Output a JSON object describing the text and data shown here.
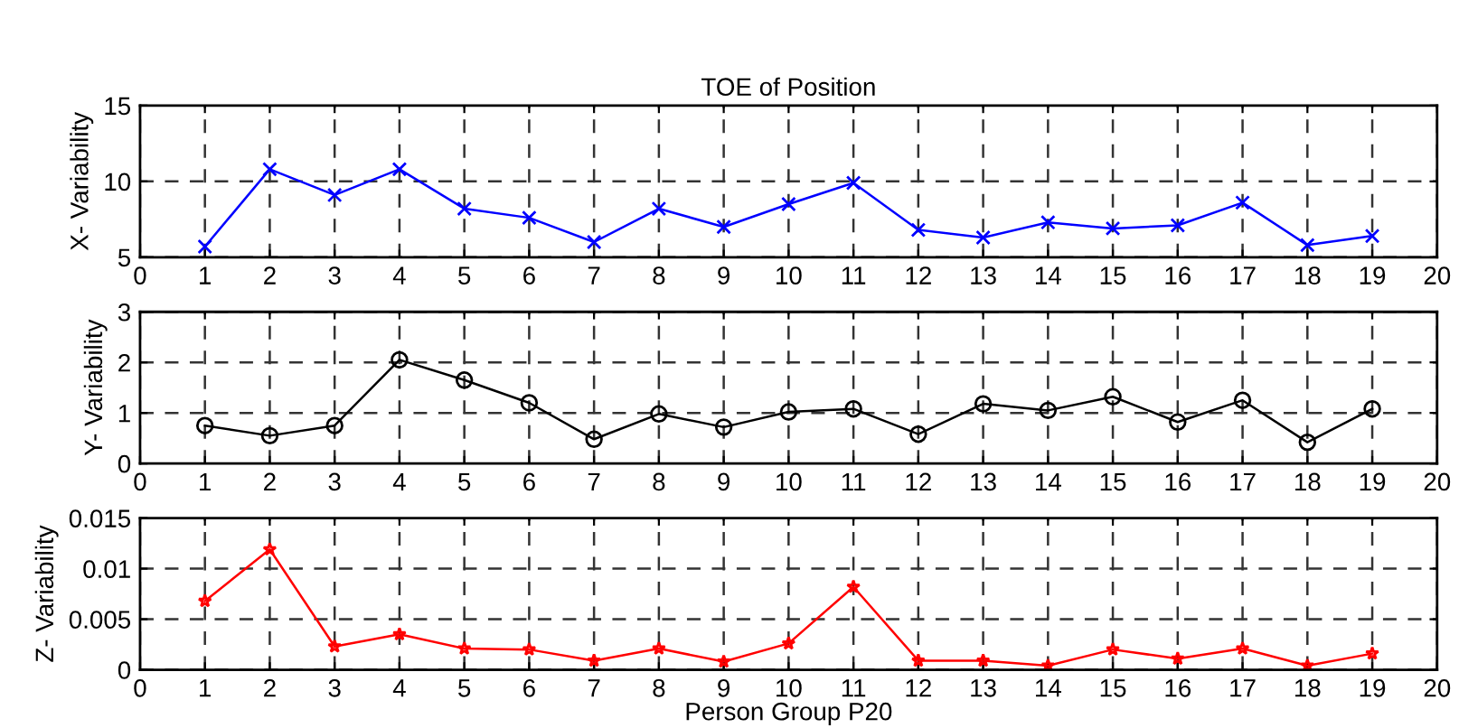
{
  "chart_data": [
    {
      "type": "line",
      "title": "TOE of Position",
      "ylabel": "X- Variability",
      "x": [
        1,
        2,
        3,
        4,
        5,
        6,
        7,
        8,
        9,
        10,
        11,
        12,
        13,
        14,
        15,
        16,
        17,
        18,
        19
      ],
      "series": [
        {
          "color": "#0000ff",
          "values": [
            5.7,
            10.8,
            9.1,
            10.8,
            8.2,
            7.6,
            6.0,
            8.2,
            7.0,
            8.5,
            9.9,
            6.8,
            6.3,
            7.3,
            6.9,
            7.1,
            8.6,
            5.8,
            6.4
          ]
        }
      ],
      "xlim": [
        0,
        20
      ],
      "xticks": [
        0,
        1,
        2,
        3,
        4,
        5,
        6,
        7,
        8,
        9,
        10,
        11,
        12,
        13,
        14,
        15,
        16,
        17,
        18,
        19,
        20
      ],
      "ylim": [
        5,
        15
      ],
      "yticks": [
        5,
        10,
        15
      ],
      "grid": true,
      "marker": "cross",
      "line_style": "solid",
      "legend": false
    },
    {
      "type": "line",
      "ylabel": "Y- Variability",
      "x": [
        1,
        2,
        3,
        4,
        5,
        6,
        7,
        8,
        9,
        10,
        11,
        12,
        13,
        14,
        15,
        16,
        17,
        18,
        19
      ],
      "series": [
        {
          "color": "#000000",
          "values": [
            0.75,
            0.55,
            0.75,
            2.05,
            1.65,
            1.2,
            0.48,
            0.98,
            0.72,
            1.02,
            1.08,
            0.58,
            1.18,
            1.05,
            1.32,
            0.82,
            1.25,
            0.42,
            1.08
          ]
        }
      ],
      "xlim": [
        0,
        20
      ],
      "xticks": [
        0,
        1,
        2,
        3,
        4,
        5,
        6,
        7,
        8,
        9,
        10,
        11,
        12,
        13,
        14,
        15,
        16,
        17,
        18,
        19,
        20
      ],
      "ylim": [
        0,
        3
      ],
      "yticks": [
        0,
        1,
        2,
        3
      ],
      "grid": true,
      "marker": "circle",
      "line_style": "solid",
      "legend": false
    },
    {
      "type": "line",
      "xlabel": "Person Group P20",
      "ylabel": "Z- Variability",
      "x": [
        1,
        2,
        3,
        4,
        5,
        6,
        7,
        8,
        9,
        10,
        11,
        12,
        13,
        14,
        15,
        16,
        17,
        18,
        19
      ],
      "series": [
        {
          "color": "#ff0000",
          "values": [
            0.0068,
            0.0119,
            0.0023,
            0.0035,
            0.0021,
            0.002,
            0.0009,
            0.0021,
            0.0008,
            0.0026,
            0.0082,
            0.0009,
            0.0009,
            0.0004,
            0.002,
            0.0011,
            0.0021,
            0.0004,
            0.0016
          ]
        }
      ],
      "xlim": [
        0,
        20
      ],
      "xticks": [
        0,
        1,
        2,
        3,
        4,
        5,
        6,
        7,
        8,
        9,
        10,
        11,
        12,
        13,
        14,
        15,
        16,
        17,
        18,
        19,
        20
      ],
      "ylim": [
        0,
        0.015
      ],
      "yticks": [
        0,
        0.005,
        0.01,
        0.015
      ],
      "grid": true,
      "marker": "star",
      "line_style": "solid",
      "legend": false
    }
  ]
}
